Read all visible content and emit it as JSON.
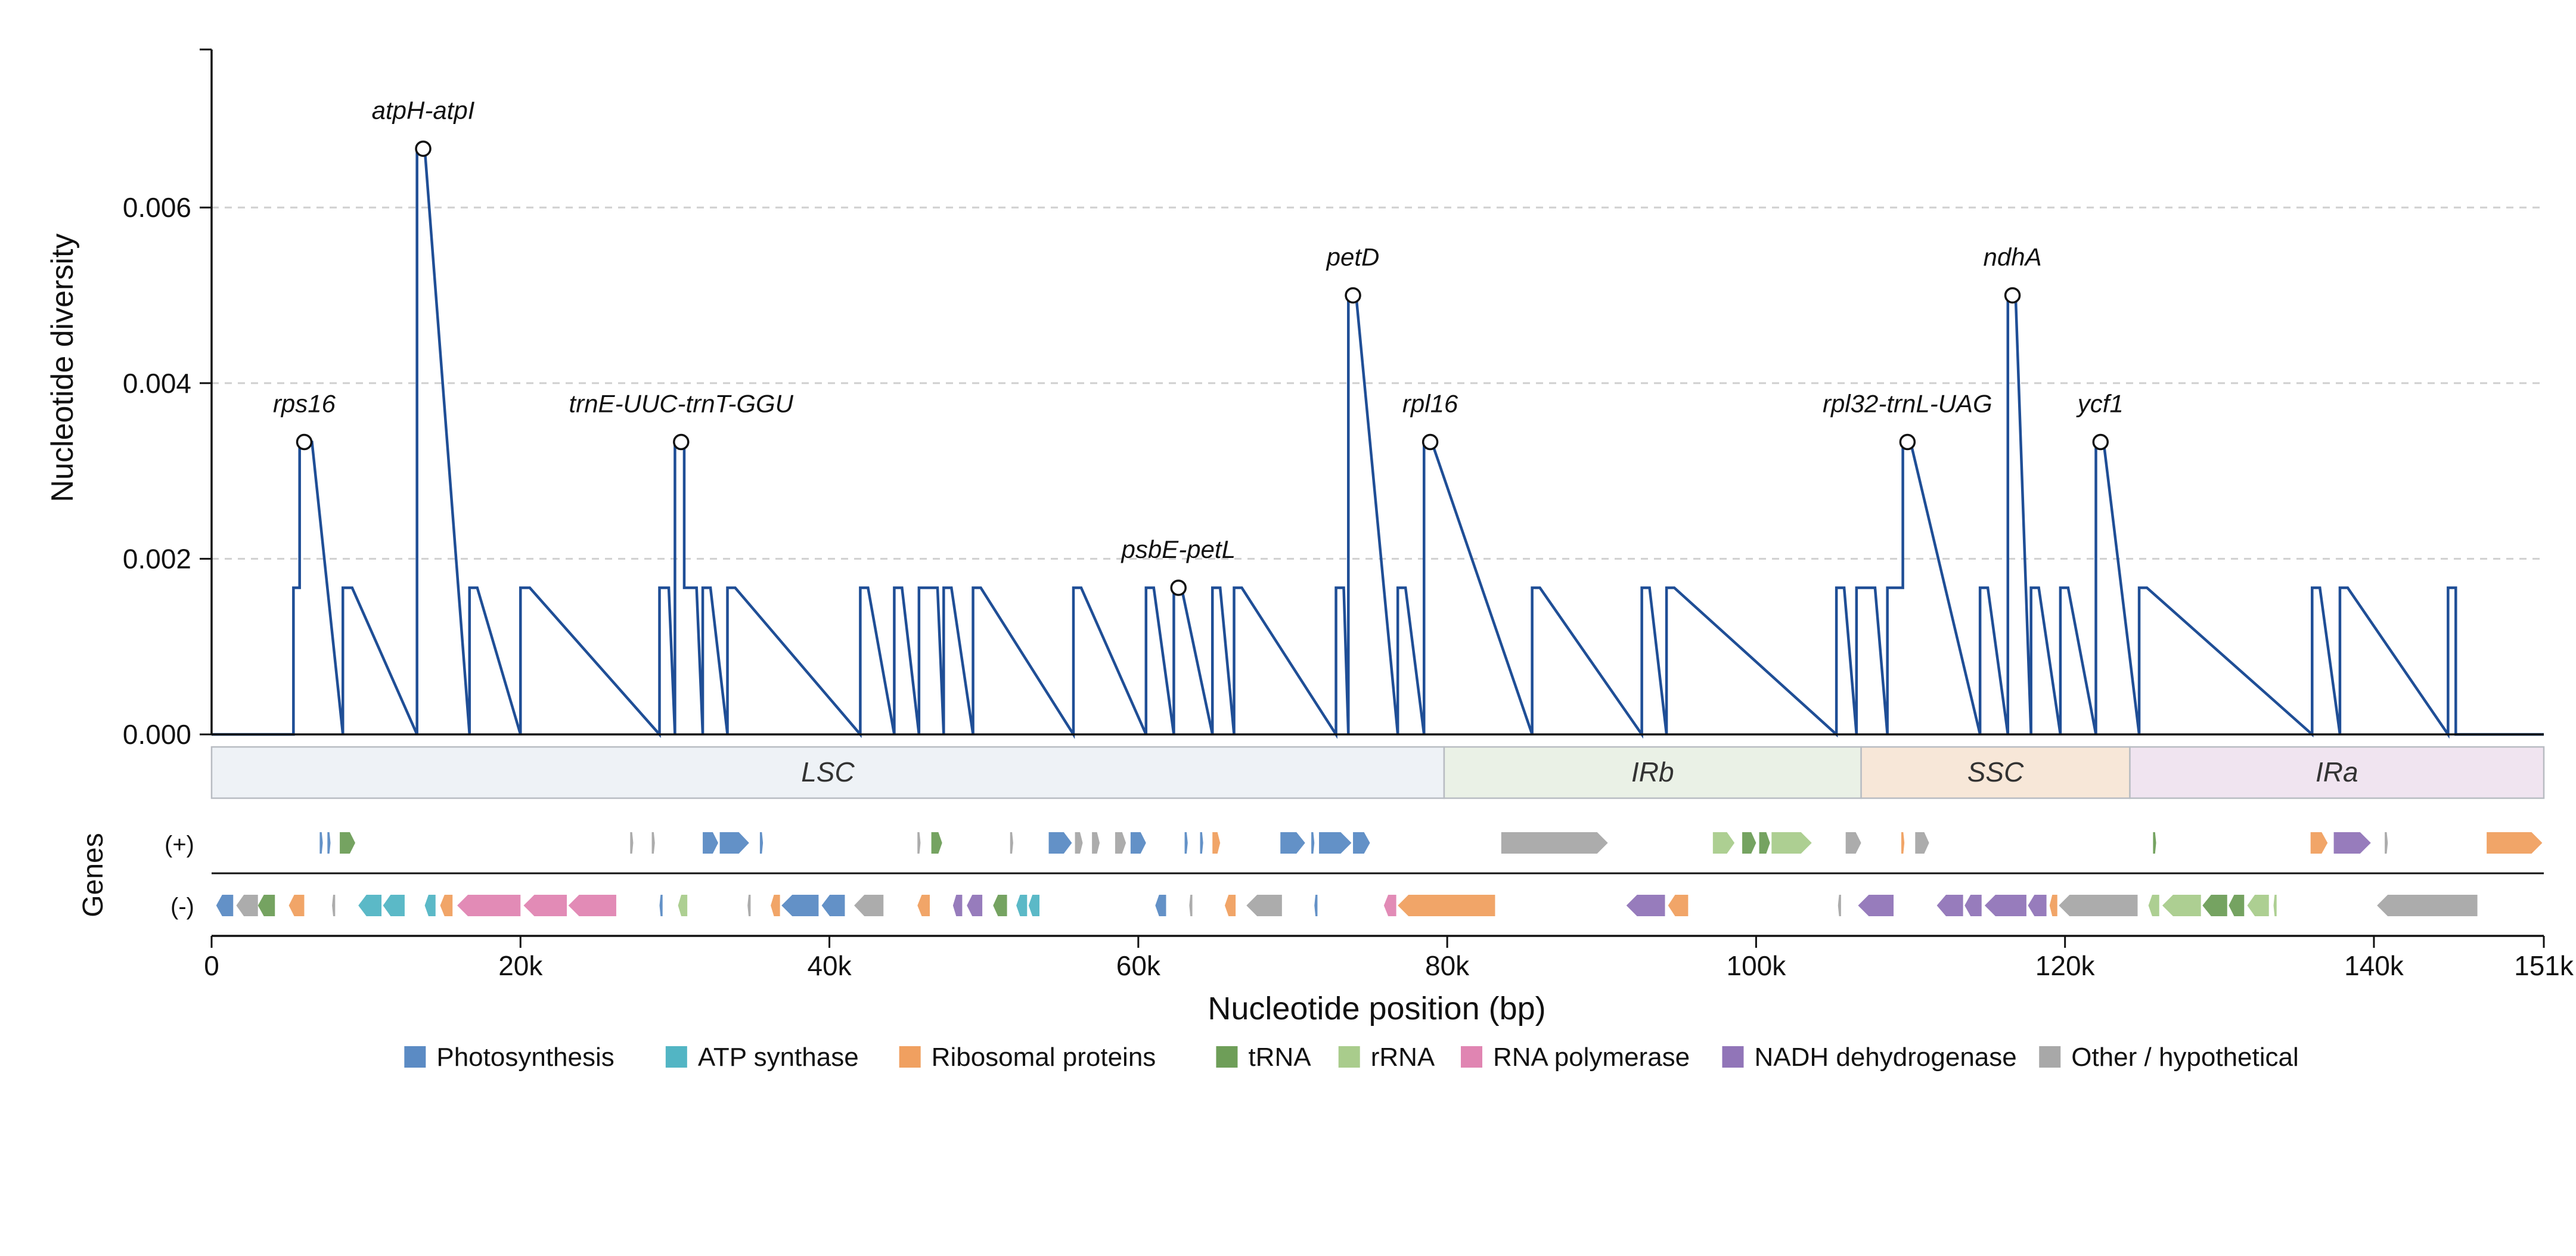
{
  "chart_data": {
    "type": "line",
    "title": "",
    "xlabel": "Nucleotide position (bp)",
    "ylabel": "Nucleotide diversity",
    "xlim": [
      0,
      151000
    ],
    "ylim": [
      0,
      0.0078
    ],
    "x_ticks": [
      0,
      20000,
      40000,
      60000,
      80000,
      100000,
      120000,
      140000,
      151000
    ],
    "x_tick_labels": [
      "0",
      "20k",
      "40k",
      "60k",
      "80k",
      "100k",
      "120k",
      "140k",
      "151k"
    ],
    "y_ticks": [
      0,
      0.002,
      0.004,
      0.006
    ],
    "y_tick_labels": [
      "0.000",
      "0.002",
      "0.004",
      "0.006"
    ],
    "grid": "y dashed",
    "series": [
      {
        "color": "#1f4e96",
        "peaks": [
          {
            "start": 5300,
            "end": 5700,
            "value": 0.00167
          },
          {
            "start": 5700,
            "end": 6500,
            "value": 0.00333
          },
          {
            "start": 8500,
            "end": 9100,
            "value": 0.00167
          },
          {
            "start": 13300,
            "end": 13800,
            "value": 0.00667
          },
          {
            "start": 16700,
            "end": 17200,
            "value": 0.00167
          },
          {
            "start": 20000,
            "end": 20600,
            "value": 0.00167
          },
          {
            "start": 29000,
            "end": 29600,
            "value": 0.00167
          },
          {
            "start": 30000,
            "end": 30600,
            "value": 0.00333
          },
          {
            "start": 30600,
            "end": 31400,
            "value": 0.00167
          },
          {
            "start": 31800,
            "end": 32300,
            "value": 0.00167
          },
          {
            "start": 33400,
            "end": 33900,
            "value": 0.00167
          },
          {
            "start": 42000,
            "end": 42500,
            "value": 0.00167
          },
          {
            "start": 44200,
            "end": 44700,
            "value": 0.00167
          },
          {
            "start": 45800,
            "end": 47000,
            "value": 0.00167
          },
          {
            "start": 47400,
            "end": 47900,
            "value": 0.00167
          },
          {
            "start": 49300,
            "end": 49800,
            "value": 0.00167
          },
          {
            "start": 55800,
            "end": 56300,
            "value": 0.00167
          },
          {
            "start": 60500,
            "end": 61000,
            "value": 0.00167
          },
          {
            "start": 62300,
            "end": 62800,
            "value": 0.00167
          },
          {
            "start": 64800,
            "end": 65300,
            "value": 0.00167
          },
          {
            "start": 66200,
            "end": 66700,
            "value": 0.00167
          },
          {
            "start": 72800,
            "end": 73300,
            "value": 0.00167
          },
          {
            "start": 73600,
            "end": 74100,
            "value": 0.005
          },
          {
            "start": 76800,
            "end": 77300,
            "value": 0.00167
          },
          {
            "start": 78500,
            "end": 79000,
            "value": 0.00333
          },
          {
            "start": 85500,
            "end": 86000,
            "value": 0.00167
          },
          {
            "start": 92600,
            "end": 93100,
            "value": 0.00167
          },
          {
            "start": 94200,
            "end": 94700,
            "value": 0.00167
          },
          {
            "start": 105200,
            "end": 105700,
            "value": 0.00167
          },
          {
            "start": 106500,
            "end": 107700,
            "value": 0.00167
          },
          {
            "start": 108500,
            "end": 109500,
            "value": 0.00167
          },
          {
            "start": 109500,
            "end": 110000,
            "value": 0.00333
          },
          {
            "start": 114500,
            "end": 115000,
            "value": 0.00167
          },
          {
            "start": 116300,
            "end": 116800,
            "value": 0.005
          },
          {
            "start": 117800,
            "end": 118300,
            "value": 0.00167
          },
          {
            "start": 119700,
            "end": 120200,
            "value": 0.00167
          },
          {
            "start": 122000,
            "end": 122500,
            "value": 0.00333
          },
          {
            "start": 124800,
            "end": 125300,
            "value": 0.00167
          },
          {
            "start": 136000,
            "end": 136500,
            "value": 0.00167
          },
          {
            "start": 137800,
            "end": 138300,
            "value": 0.00167
          },
          {
            "start": 144800,
            "end": 145300,
            "value": 0.00167
          }
        ]
      }
    ],
    "annotations": [
      {
        "label": "rps16",
        "x": 6000,
        "y": 0.00333
      },
      {
        "label": "atpH-atpI",
        "x": 13700,
        "y": 0.00667
      },
      {
        "label": "trnE-UUC-trnT-GGU",
        "x": 30400,
        "y": 0.00333
      },
      {
        "label": "psbE-petL",
        "x": 62600,
        "y": 0.00167
      },
      {
        "label": "petD",
        "x": 73900,
        "y": 0.005
      },
      {
        "label": "rpl16",
        "x": 78900,
        "y": 0.00333
      },
      {
        "label": "rpl32-trnL-UAG",
        "x": 109800,
        "y": 0.00333
      },
      {
        "label": "ndhA",
        "x": 116600,
        "y": 0.005
      },
      {
        "label": "ycf1",
        "x": 122300,
        "y": 0.00333
      }
    ],
    "regions": [
      {
        "label": "LSC",
        "start": 0,
        "end": 79800,
        "color": "#eef2f6"
      },
      {
        "label": "IRb",
        "start": 79800,
        "end": 106800,
        "color": "#eaf1e6"
      },
      {
        "label": "SSC",
        "start": 106800,
        "end": 124200,
        "color": "#f7e7d8"
      },
      {
        "label": "IRa",
        "start": 124200,
        "end": 151000,
        "color": "#f0e4f0"
      }
    ],
    "gene_track": {
      "title": "Genes",
      "strand_labels": {
        "plus": "(+)",
        "minus": "(-)"
      },
      "plus": [
        {
          "s": 7000,
          "e": 7200,
          "c": "photo"
        },
        {
          "s": 7500,
          "e": 7700,
          "c": "photo"
        },
        {
          "s": 8300,
          "e": 9300,
          "c": "trna"
        },
        {
          "s": 27100,
          "e": 27300,
          "c": "other"
        },
        {
          "s": 28500,
          "e": 28700,
          "c": "other"
        },
        {
          "s": 31800,
          "e": 32800,
          "c": "photo"
        },
        {
          "s": 32900,
          "e": 34800,
          "c": "photo"
        },
        {
          "s": 35500,
          "e": 35700,
          "c": "photo"
        },
        {
          "s": 45700,
          "e": 45900,
          "c": "other"
        },
        {
          "s": 46600,
          "e": 47300,
          "c": "trna"
        },
        {
          "s": 51700,
          "e": 51900,
          "c": "other"
        },
        {
          "s": 54200,
          "e": 55700,
          "c": "photo"
        },
        {
          "s": 55900,
          "e": 56400,
          "c": "other"
        },
        {
          "s": 57000,
          "e": 57500,
          "c": "other"
        },
        {
          "s": 58500,
          "e": 59200,
          "c": "other"
        },
        {
          "s": 59500,
          "e": 60500,
          "c": "photo"
        },
        {
          "s": 63000,
          "e": 63200,
          "c": "photo"
        },
        {
          "s": 64000,
          "e": 64200,
          "c": "photo"
        },
        {
          "s": 64800,
          "e": 65300,
          "c": "ribo"
        },
        {
          "s": 69200,
          "e": 70800,
          "c": "photo"
        },
        {
          "s": 71200,
          "e": 71400,
          "c": "photo"
        },
        {
          "s": 71700,
          "e": 73800,
          "c": "photo"
        },
        {
          "s": 73900,
          "e": 75000,
          "c": "photo"
        },
        {
          "s": 83500,
          "e": 90400,
          "c": "other"
        },
        {
          "s": 97200,
          "e": 98600,
          "c": "rrna"
        },
        {
          "s": 99100,
          "e": 100000,
          "c": "trna"
        },
        {
          "s": 100200,
          "e": 100900,
          "c": "trna"
        },
        {
          "s": 101000,
          "e": 103600,
          "c": "rrna"
        },
        {
          "s": 105800,
          "e": 106800,
          "c": "other"
        },
        {
          "s": 109400,
          "e": 109600,
          "c": "ribo"
        },
        {
          "s": 110300,
          "e": 111200,
          "c": "other"
        },
        {
          "s": 125700,
          "e": 125900,
          "c": "trna"
        },
        {
          "s": 135900,
          "e": 137000,
          "c": "ribo"
        },
        {
          "s": 137400,
          "e": 139800,
          "c": "nadh"
        },
        {
          "s": 140700,
          "e": 140900,
          "c": "other"
        },
        {
          "s": 147300,
          "e": 150900,
          "c": "ribo"
        }
      ],
      "minus": [
        {
          "s": 300,
          "e": 1400,
          "c": "photo"
        },
        {
          "s": 1600,
          "e": 3000,
          "c": "other"
        },
        {
          "s": 3000,
          "e": 4100,
          "c": "trna"
        },
        {
          "s": 5000,
          "e": 6000,
          "c": "ribo"
        },
        {
          "s": 7800,
          "e": 8000,
          "c": "other"
        },
        {
          "s": 9500,
          "e": 11000,
          "c": "atp"
        },
        {
          "s": 11100,
          "e": 12500,
          "c": "atp"
        },
        {
          "s": 13800,
          "e": 14500,
          "c": "atp"
        },
        {
          "s": 14800,
          "e": 15600,
          "c": "ribo"
        },
        {
          "s": 15900,
          "e": 20000,
          "c": "rnap"
        },
        {
          "s": 20200,
          "e": 23000,
          "c": "rnap"
        },
        {
          "s": 23100,
          "e": 26200,
          "c": "rnap"
        },
        {
          "s": 29000,
          "e": 29200,
          "c": "photo"
        },
        {
          "s": 30200,
          "e": 30800,
          "c": "rrna"
        },
        {
          "s": 34700,
          "e": 34900,
          "c": "other"
        },
        {
          "s": 36200,
          "e": 36800,
          "c": "ribo"
        },
        {
          "s": 36900,
          "e": 39300,
          "c": "photo"
        },
        {
          "s": 39500,
          "e": 41000,
          "c": "photo"
        },
        {
          "s": 41600,
          "e": 43500,
          "c": "other"
        },
        {
          "s": 45700,
          "e": 46500,
          "c": "ribo"
        },
        {
          "s": 48000,
          "e": 48600,
          "c": "nadh"
        },
        {
          "s": 48900,
          "e": 49900,
          "c": "nadh"
        },
        {
          "s": 50600,
          "e": 51500,
          "c": "trna"
        },
        {
          "s": 52100,
          "e": 52800,
          "c": "atp"
        },
        {
          "s": 52900,
          "e": 53600,
          "c": "atp"
        },
        {
          "s": 61100,
          "e": 61800,
          "c": "photo"
        },
        {
          "s": 63300,
          "e": 63500,
          "c": "other"
        },
        {
          "s": 65600,
          "e": 66300,
          "c": "ribo"
        },
        {
          "s": 67000,
          "e": 69300,
          "c": "other"
        },
        {
          "s": 71400,
          "e": 71600,
          "c": "photo"
        },
        {
          "s": 75900,
          "e": 76700,
          "c": "rnap"
        },
        {
          "s": 76800,
          "e": 83100,
          "c": "ribo"
        },
        {
          "s": 91600,
          "e": 94100,
          "c": "nadh"
        },
        {
          "s": 94300,
          "e": 95600,
          "c": "ribo"
        },
        {
          "s": 105300,
          "e": 105500,
          "c": "other"
        },
        {
          "s": 106600,
          "e": 108900,
          "c": "nadh"
        },
        {
          "s": 111700,
          "e": 113400,
          "c": "nadh"
        },
        {
          "s": 113500,
          "e": 114600,
          "c": "nadh"
        },
        {
          "s": 114800,
          "e": 117500,
          "c": "nadh"
        },
        {
          "s": 117600,
          "e": 118800,
          "c": "nadh"
        },
        {
          "s": 119000,
          "e": 119500,
          "c": "ribo"
        },
        {
          "s": 119600,
          "e": 124700,
          "c": "other"
        },
        {
          "s": 125400,
          "e": 126100,
          "c": "rrna"
        },
        {
          "s": 126300,
          "e": 128800,
          "c": "rrna"
        },
        {
          "s": 128900,
          "e": 130500,
          "c": "trna"
        },
        {
          "s": 130600,
          "e": 131600,
          "c": "trna"
        },
        {
          "s": 131800,
          "e": 133200,
          "c": "rrna"
        },
        {
          "s": 133500,
          "e": 133700,
          "c": "rrna"
        },
        {
          "s": 140200,
          "e": 146700,
          "c": "other"
        }
      ]
    },
    "legend": {
      "placement": "bottom",
      "entries": [
        {
          "key": "photo",
          "label": "Photosynthesis",
          "color": "#5b8bc4"
        },
        {
          "key": "atp",
          "label": "ATP synthase",
          "color": "#52b5c4"
        },
        {
          "key": "ribo",
          "label": "Ribosomal proteins",
          "color": "#f0a060"
        },
        {
          "key": "trna",
          "label": "tRNA",
          "color": "#6e9e58"
        },
        {
          "key": "rrna",
          "label": "rRNA",
          "color": "#a9cc8c"
        },
        {
          "key": "rnap",
          "label": "RNA polymerase",
          "color": "#e085b2"
        },
        {
          "key": "nadh",
          "label": "NADH dehydrogenase",
          "color": "#9175b8"
        },
        {
          "key": "other",
          "label": "Other / hypothetical",
          "color": "#a8a8a8"
        }
      ]
    }
  }
}
